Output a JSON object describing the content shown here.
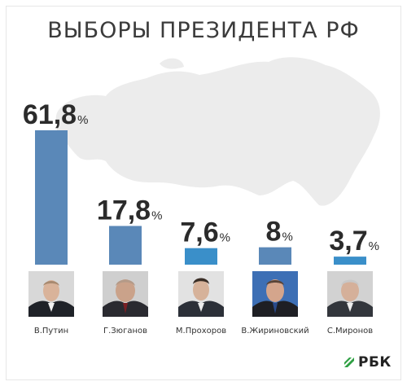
{
  "title": "ВЫБОРЫ ПРЕЗИДЕНТА РФ",
  "chart_data": {
    "type": "bar",
    "categories": [
      "В.Путин",
      "Г.Зюганов",
      "М.Прохоров",
      "В.Жириновский",
      "С.Миронов"
    ],
    "values": [
      61.8,
      17.8,
      7.6,
      8,
      3.7
    ],
    "value_labels": [
      "61,8",
      "17,8",
      "7,6",
      "8",
      "3,7"
    ],
    "unit": "%",
    "ylim": [
      0,
      61.8
    ],
    "grid": false,
    "legend": "none",
    "bar_colors": [
      "#5a88b8",
      "#5a88b8",
      "#3a8fc9",
      "#5a88b8",
      "#3a8fc9"
    ]
  },
  "candidates": [
    {
      "name": "В.Путин",
      "photo_icon": "portrait-putin"
    },
    {
      "name": "Г.Зюганов",
      "photo_icon": "portrait-zyuganov"
    },
    {
      "name": "М.Прохоров",
      "photo_icon": "portrait-prokhorov"
    },
    {
      "name": "В.Жириновский",
      "photo_icon": "portrait-zhirinovsky"
    },
    {
      "name": "С.Миронов",
      "photo_icon": "portrait-mironov"
    }
  ],
  "logo": {
    "text": "РБК",
    "icon": "rbc-logo-icon"
  },
  "colors": {
    "map": "#ececec",
    "title": "#3b3b3b",
    "value_text": "#2b2b2b"
  }
}
